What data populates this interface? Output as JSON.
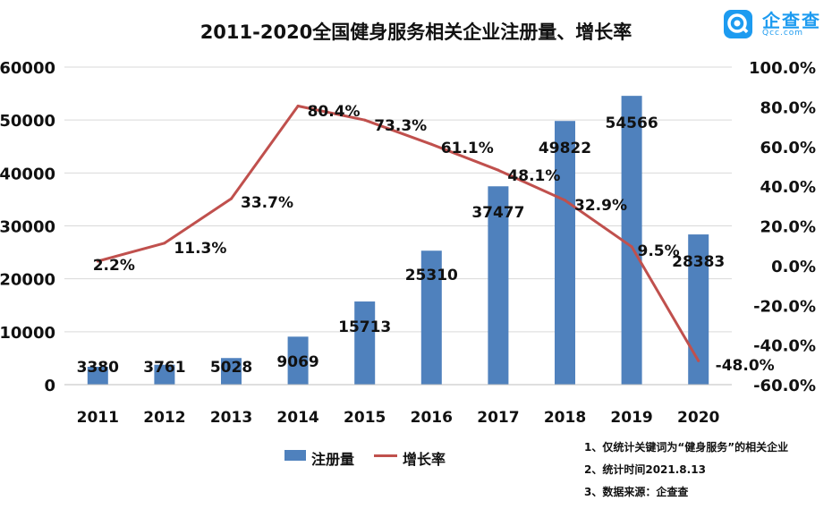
{
  "chart_data": {
    "type": "bar",
    "title": "2011-2020全国健身服务相关企业注册量、增长率",
    "categories": [
      "2011",
      "2012",
      "2013",
      "2014",
      "2015",
      "2016",
      "2017",
      "2018",
      "2019",
      "2020"
    ],
    "series": [
      {
        "name": "注册量",
        "chart_type": "bar",
        "axis": "left",
        "color": "#4f81bd",
        "values": [
          3380,
          3761,
          5028,
          9069,
          15713,
          25310,
          37477,
          49822,
          54566,
          28383
        ],
        "labels": [
          "3380",
          "3761",
          "5028",
          "9069",
          "15713",
          "25310",
          "37477",
          "49822",
          "54566",
          "28383"
        ]
      },
      {
        "name": "增长率",
        "chart_type": "line",
        "axis": "right",
        "color": "#c0504d",
        "values": [
          2.2,
          11.3,
          33.7,
          80.4,
          73.3,
          61.1,
          48.1,
          32.9,
          9.5,
          -48.0
        ],
        "labels": [
          "2.2%",
          "11.3%",
          "33.7%",
          "80.4%",
          "73.3%",
          "61.1%",
          "48.1%",
          "32.9%",
          "9.5%",
          "-48.0%"
        ]
      }
    ],
    "y_left": {
      "min": 0,
      "max": 60000,
      "ticks": [
        0,
        10000,
        20000,
        30000,
        40000,
        50000,
        60000
      ],
      "tick_labels": [
        "0",
        "10000",
        "20000",
        "30000",
        "40000",
        "50000",
        "60000"
      ]
    },
    "y_right": {
      "min": -60,
      "max": 100,
      "ticks": [
        -60,
        -40,
        -20,
        0,
        20,
        40,
        60,
        80,
        100
      ],
      "tick_labels": [
        "-60.0%",
        "-40.0%",
        "-20.0%",
        "0.0%",
        "20.0%",
        "40.0%",
        "60.0%",
        "80.0%",
        "100.0%"
      ]
    },
    "grid": true,
    "legend_position": "bottom",
    "legend": [
      {
        "name": "注册量",
        "kind": "bar"
      },
      {
        "name": "增长率",
        "kind": "line"
      }
    ]
  },
  "logo": {
    "name": "企查查",
    "sub": "Qcc.com"
  },
  "notes": [
    "1、仅统计关键词为“健身服务”的相关企业",
    "2、统计时间2021.8.13",
    "3、数据来源：企查查"
  ],
  "colors": {
    "bar": "#4f81bd",
    "line": "#c0504d",
    "grid": "#d9d9d9",
    "brand": "#1d9bf0"
  }
}
